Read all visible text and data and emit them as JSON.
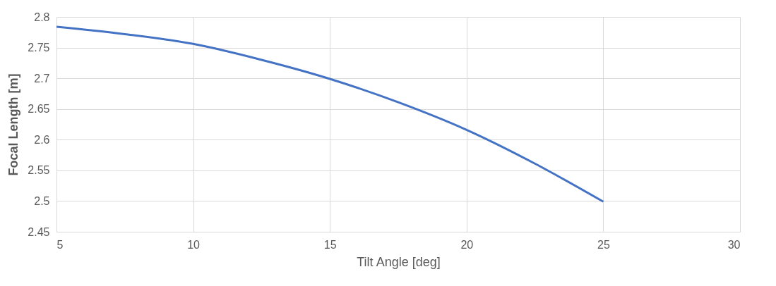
{
  "chart_data": {
    "type": "line",
    "xlabel": "Tilt Angle [deg]",
    "ylabel": "Focal Length [m]",
    "x": [
      5,
      7.5,
      10,
      12.5,
      15,
      17.5,
      20,
      22.5,
      25
    ],
    "series": [
      {
        "color": "#4472c4",
        "values": [
          2.784,
          2.772,
          2.756,
          2.73,
          2.699,
          2.661,
          2.616,
          2.561,
          2.499
        ]
      }
    ],
    "xlim": [
      5,
      30
    ],
    "xticks": [
      5,
      10,
      15,
      20,
      25,
      30
    ],
    "ylim": [
      2.45,
      2.8
    ],
    "yticks": [
      2.45,
      2.5,
      2.55,
      2.6,
      2.65,
      2.7,
      2.75,
      2.8
    ],
    "grid": true,
    "marker": "none",
    "line_style": "solid",
    "legend": false
  }
}
